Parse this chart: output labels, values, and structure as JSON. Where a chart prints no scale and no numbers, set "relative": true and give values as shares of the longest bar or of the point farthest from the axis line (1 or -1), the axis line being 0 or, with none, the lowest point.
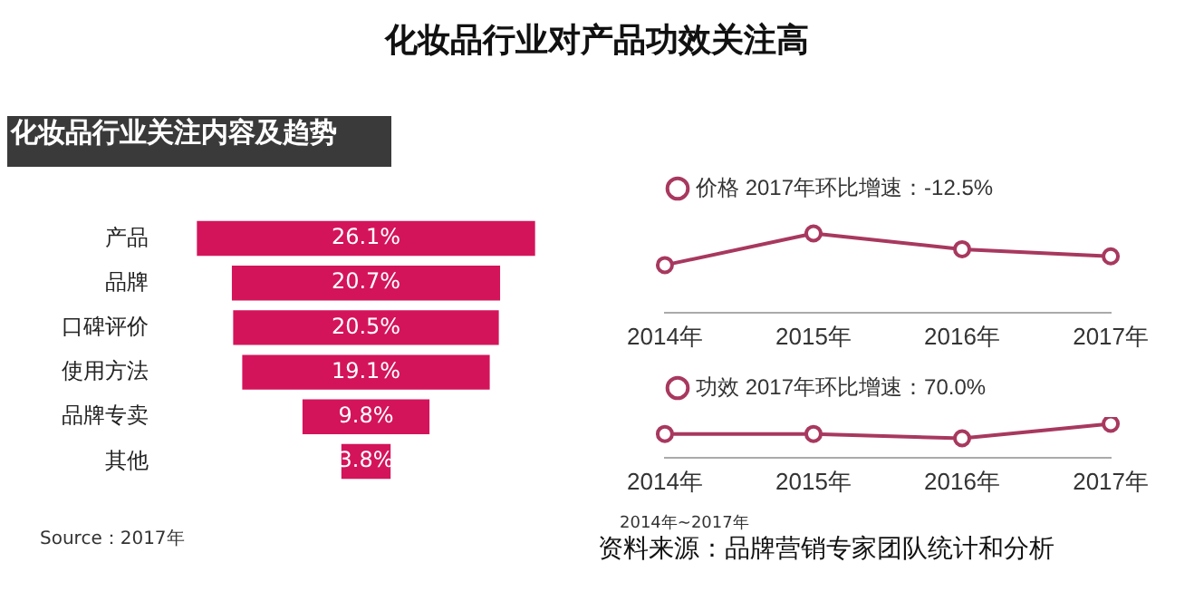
{
  "chart_data": [
    {
      "type": "other",
      "title": "化妆品行业对产品功效关注高",
      "subtitle": "化妆品行业关注内容及趋势",
      "categories": [
        "产品",
        "品牌",
        "口碑评价",
        "使用方法",
        "品牌专卖",
        "其他"
      ],
      "values": [
        26.1,
        20.7,
        20.5,
        19.1,
        9.8,
        3.8
      ],
      "value_labels": [
        "26.1%",
        "20.7%",
        "20.5%",
        "19.1%",
        "9.8%",
        "3.8%"
      ],
      "color": "#d4145a",
      "annotations": [
        "Source：2017年"
      ]
    },
    {
      "type": "line",
      "categories": [
        "2014年",
        "2015年",
        "2016年",
        "2017年"
      ],
      "relative": true,
      "marker": "circle",
      "legend": "top left",
      "series": [
        {
          "name": "价格 2017年环比增速：-12.5%",
          "color": "#a8385f",
          "values": [
            0.6,
            1,
            0.8,
            0.71
          ]
        }
      ]
    },
    {
      "type": "line",
      "categories": [
        "2014年",
        "2015年",
        "2016年",
        "2017年"
      ],
      "relative": true,
      "marker": "circle",
      "legend": "top left",
      "series": [
        {
          "name": "功效 2017年环比增速：70.0%",
          "color": "#a8385f",
          "values": [
            0.7,
            0.7,
            0.57,
            1
          ]
        }
      ],
      "annotations": [
        "2014年~2017年",
        "资料来源：品牌营销专家团队统计和分析"
      ]
    }
  ]
}
